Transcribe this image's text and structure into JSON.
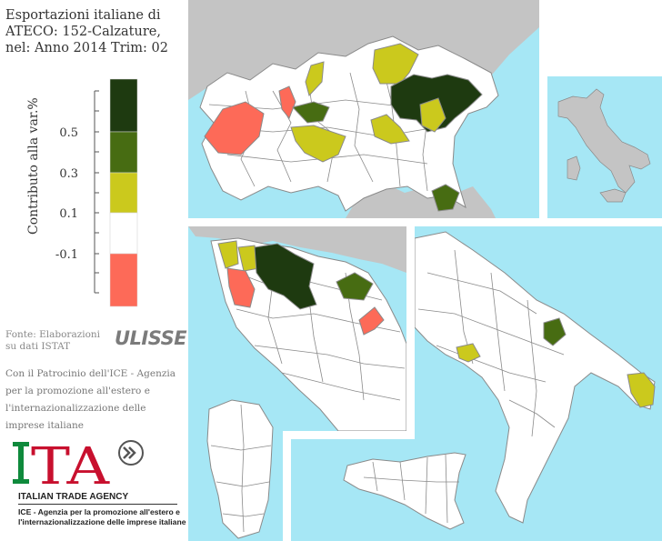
{
  "title": {
    "line1": "Esportazioni italiane di",
    "line2": "ATECO: 152-Calzature,",
    "line3": "nel: Anno 2014 Trim: 02"
  },
  "legend": {
    "axis_label": "Contributo alla var.%",
    "ticks": [
      "0.5",
      "0.3",
      "0.1",
      "-0.1"
    ],
    "classes": [
      {
        "color": "#1e3a10",
        "range": "> 0.5"
      },
      {
        "color": "#476c12",
        "range": "0.3 - 0.5"
      },
      {
        "color": "#cbc91d",
        "range": "0.1 - 0.3"
      },
      {
        "color": "#ffffff",
        "range": "-0.1 - 0.1"
      },
      {
        "color": "#fd6a58",
        "range": "< -0.1"
      }
    ]
  },
  "colors": {
    "sea": "#a6e7f5",
    "land": "#ffffff",
    "foreign": "#c4c4c4",
    "border": "#8a8a8a",
    "country_overview": "#c4c4c4"
  },
  "source": {
    "line1": "Fonte: Elaborazioni",
    "line2": "su dati ISTAT"
  },
  "ulisse_logo": "ULISSE",
  "patronage": {
    "line1": "Con il Patrocinio dell'ICE - Agenzia",
    "line2": "per la promozione all'estero e",
    "line3": "l'internazionalizzazione delle",
    "line4": "imprese italiane"
  },
  "ita": {
    "logo_text": "ITA",
    "name": "ITALIAN TRADE AGENCY",
    "desc_line1": "ICE - Agenzia per la promozione all'estero e",
    "desc_line2": "l'internazionalizzazione delle imprese italiane"
  },
  "map_panels": [
    "Nord Italia",
    "Italia (panoramica)",
    "Centro Italia",
    "Sud Italia",
    "Sardegna",
    "Sicilia"
  ],
  "highlighted_provinces": [
    {
      "panel": "Nord Italia",
      "class": "> 0.5",
      "color": "#1e3a10"
    },
    {
      "panel": "Nord Italia",
      "class": "0.3 - 0.5",
      "color": "#476c12"
    },
    {
      "panel": "Nord Italia",
      "class": "0.1 - 0.3",
      "color": "#cbc91d"
    },
    {
      "panel": "Nord Italia",
      "class": "< -0.1",
      "color": "#fd6a58"
    },
    {
      "panel": "Centro Italia",
      "class": "> 0.5",
      "color": "#1e3a10"
    },
    {
      "panel": "Centro Italia",
      "class": "0.3 - 0.5",
      "color": "#476c12"
    },
    {
      "panel": "Centro Italia",
      "class": "0.1 - 0.3",
      "color": "#cbc91d"
    },
    {
      "panel": "Centro Italia",
      "class": "< -0.1",
      "color": "#fd6a58"
    },
    {
      "panel": "Sud Italia",
      "class": "0.3 - 0.5",
      "color": "#476c12"
    },
    {
      "panel": "Sud Italia",
      "class": "0.1 - 0.3",
      "color": "#cbc91d"
    }
  ]
}
